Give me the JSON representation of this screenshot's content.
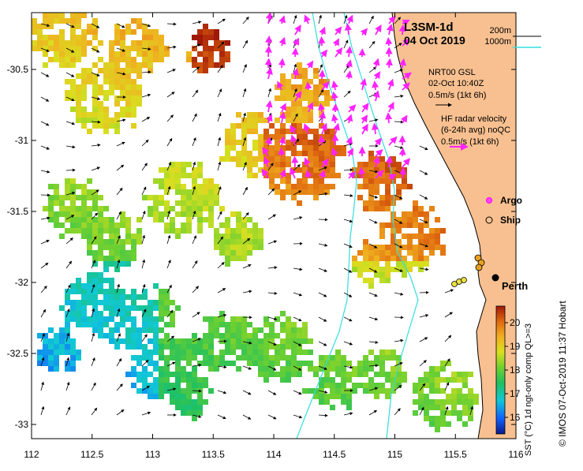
{
  "map": {
    "title": "L3SM-1d",
    "date": "04 Oct 2019",
    "lon_ticks": [
      "112",
      "112.5",
      "113",
      "113.5",
      "114",
      "114.5",
      "115",
      "115.5",
      "116"
    ],
    "lat_ticks": [
      "-30.5",
      "-31",
      "-31.5",
      "-32",
      "-32.5",
      "-33"
    ],
    "lon_range": [
      112,
      116
    ],
    "lat_range": [
      -33.1,
      -30.1
    ]
  },
  "isobaths": {
    "label_200": "200m",
    "label_1000": "1000m",
    "color_200": "#000000",
    "color_1000": "#33dddd"
  },
  "wind_legend": {
    "line1": "NRT00 GSL",
    "line2": "02-Oct 10:40Z",
    "line3": "0.5m/s (1kt 6h)"
  },
  "radar_legend": {
    "line1": "HF radar velocity",
    "line2": "(6-24h avg) noQC",
    "line3": "0.5m/s (1kt 6h)",
    "color": "#ff22ff"
  },
  "symbols": {
    "argo_label": "Argo",
    "ship_label": "Ship",
    "city_label": "Perth"
  },
  "colorbar": {
    "title": "SST (°C) 1d ngt-only comp QL>=3",
    "ticks": [
      "16",
      "17",
      "18",
      "19",
      "20"
    ],
    "range": [
      15.3,
      20.7
    ]
  },
  "credit": "© IMOS 07-Oct-2019 11:37 Hobart",
  "colors": {
    "land": "#f8c090",
    "coast": "#000000",
    "vector": "#000000"
  }
}
